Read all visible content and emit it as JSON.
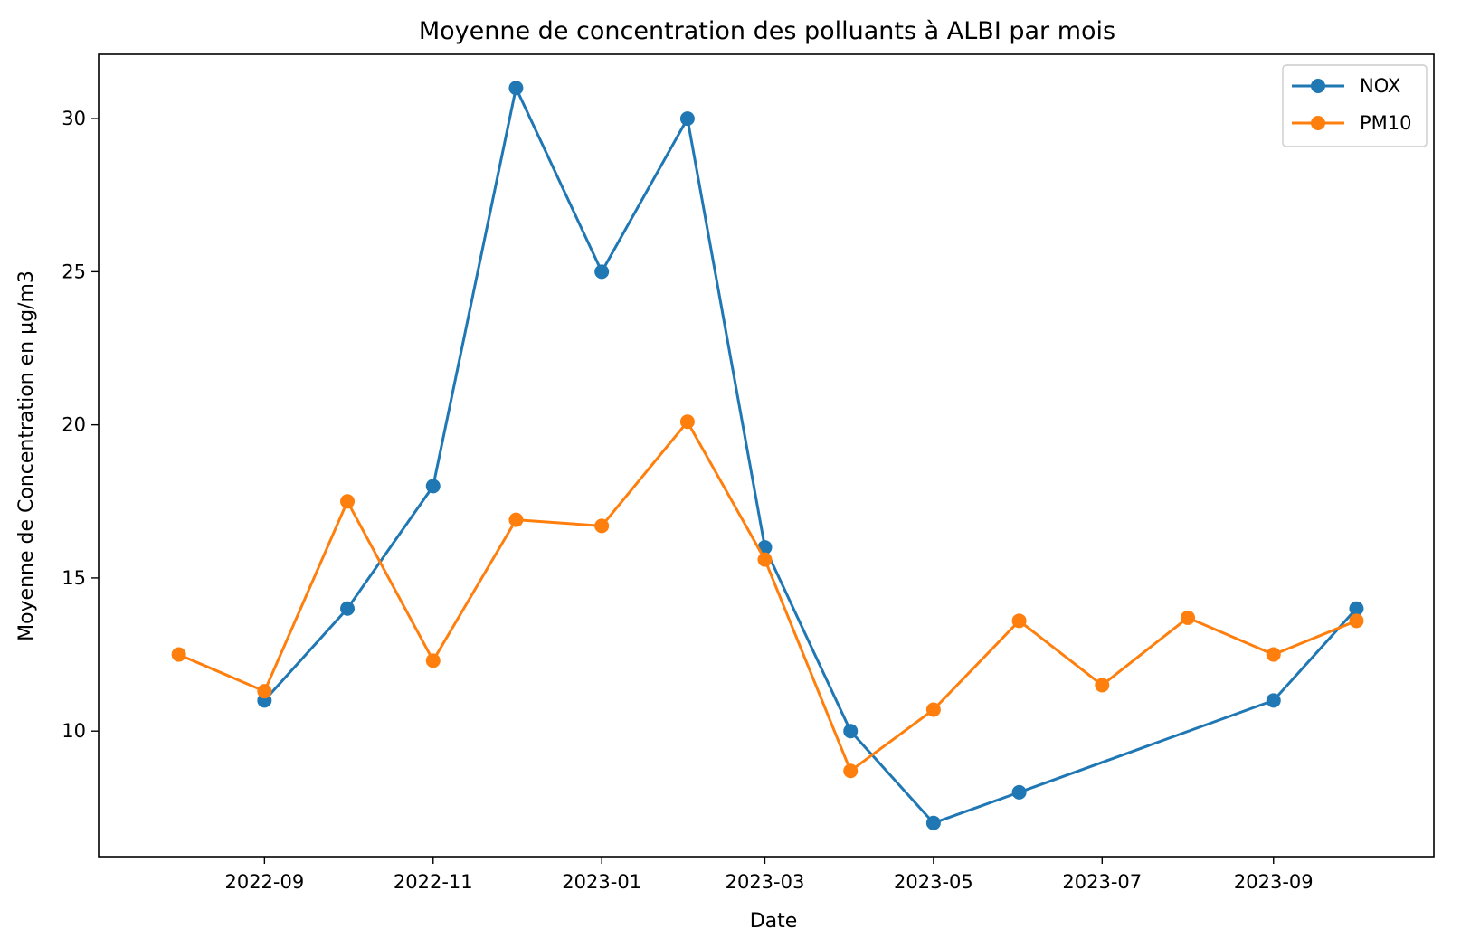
{
  "chart_data": {
    "type": "line",
    "title": "Moyenne de concentration des polluants à ALBI par mois",
    "xlabel": "Date",
    "ylabel": "Moyenne de Concentration en µg/m3",
    "x_ticks": [
      "2022-09",
      "2022-11",
      "2023-01",
      "2023-03",
      "2023-05",
      "2023-07",
      "2023-09"
    ],
    "y_ticks": [
      "10",
      "15",
      "20",
      "25",
      "30"
    ],
    "ylim": [
      5.9,
      32.1
    ],
    "xlim": [
      "2022-07-03",
      "2023-10-29"
    ],
    "grid": false,
    "legend_position": "top-right",
    "series": [
      {
        "name": "NOX",
        "color": "#1f77b4",
        "marker": "circle",
        "points": [
          {
            "x": "2022-09-01",
            "y": 11
          },
          {
            "x": "2022-10-01",
            "y": 14
          },
          {
            "x": "2022-11-01",
            "y": 18
          },
          {
            "x": "2022-12-01",
            "y": 31
          },
          {
            "x": "2023-01-01",
            "y": 25
          },
          {
            "x": "2023-02-01",
            "y": 30
          },
          {
            "x": "2023-03-01",
            "y": 16
          },
          {
            "x": "2023-04-01",
            "y": 10
          },
          {
            "x": "2023-05-01",
            "y": 7
          },
          {
            "x": "2023-06-01",
            "y": 8
          },
          {
            "x": "2023-09-01",
            "y": 11
          },
          {
            "x": "2023-10-01",
            "y": 14
          }
        ]
      },
      {
        "name": "PM10",
        "color": "#ff7f0e",
        "marker": "circle",
        "points": [
          {
            "x": "2022-08-01",
            "y": 12.5
          },
          {
            "x": "2022-09-01",
            "y": 11.3
          },
          {
            "x": "2022-10-01",
            "y": 17.5
          },
          {
            "x": "2022-11-01",
            "y": 12.3
          },
          {
            "x": "2022-12-01",
            "y": 16.9
          },
          {
            "x": "2023-01-01",
            "y": 16.7
          },
          {
            "x": "2023-02-01",
            "y": 20.1
          },
          {
            "x": "2023-03-01",
            "y": 15.6
          },
          {
            "x": "2023-04-01",
            "y": 8.7
          },
          {
            "x": "2023-05-01",
            "y": 10.7
          },
          {
            "x": "2023-06-01",
            "y": 13.6
          },
          {
            "x": "2023-07-01",
            "y": 11.5
          },
          {
            "x": "2023-08-01",
            "y": 13.7
          },
          {
            "x": "2023-09-01",
            "y": 12.5
          },
          {
            "x": "2023-10-01",
            "y": 13.6
          }
        ]
      }
    ]
  }
}
